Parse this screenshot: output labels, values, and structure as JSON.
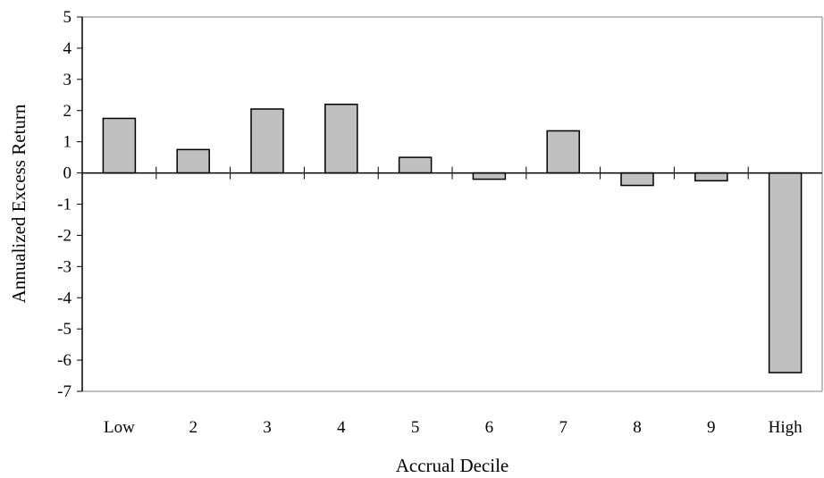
{
  "chart_data": {
    "type": "bar",
    "title": "",
    "xlabel": "Accrual Decile",
    "ylabel": "Annualized Excess Return",
    "categories": [
      "Low",
      "2",
      "3",
      "4",
      "5",
      "6",
      "7",
      "8",
      "9",
      "High"
    ],
    "values": [
      1.75,
      0.75,
      2.05,
      2.2,
      0.5,
      -0.2,
      1.35,
      -0.4,
      -0.25,
      -6.4
    ],
    "ylim": [
      -7,
      5
    ],
    "yticks": [
      "5",
      "4",
      "3",
      "2",
      "1",
      "0",
      "-1",
      "-2",
      "-3",
      "-4",
      "-5",
      "-6",
      "-7"
    ],
    "grid": false,
    "legend": "none",
    "colors": {
      "bar_fill": "#c0c0c0",
      "bar_stroke": "#000000",
      "axis": "#000000",
      "frame": "#808080"
    }
  }
}
